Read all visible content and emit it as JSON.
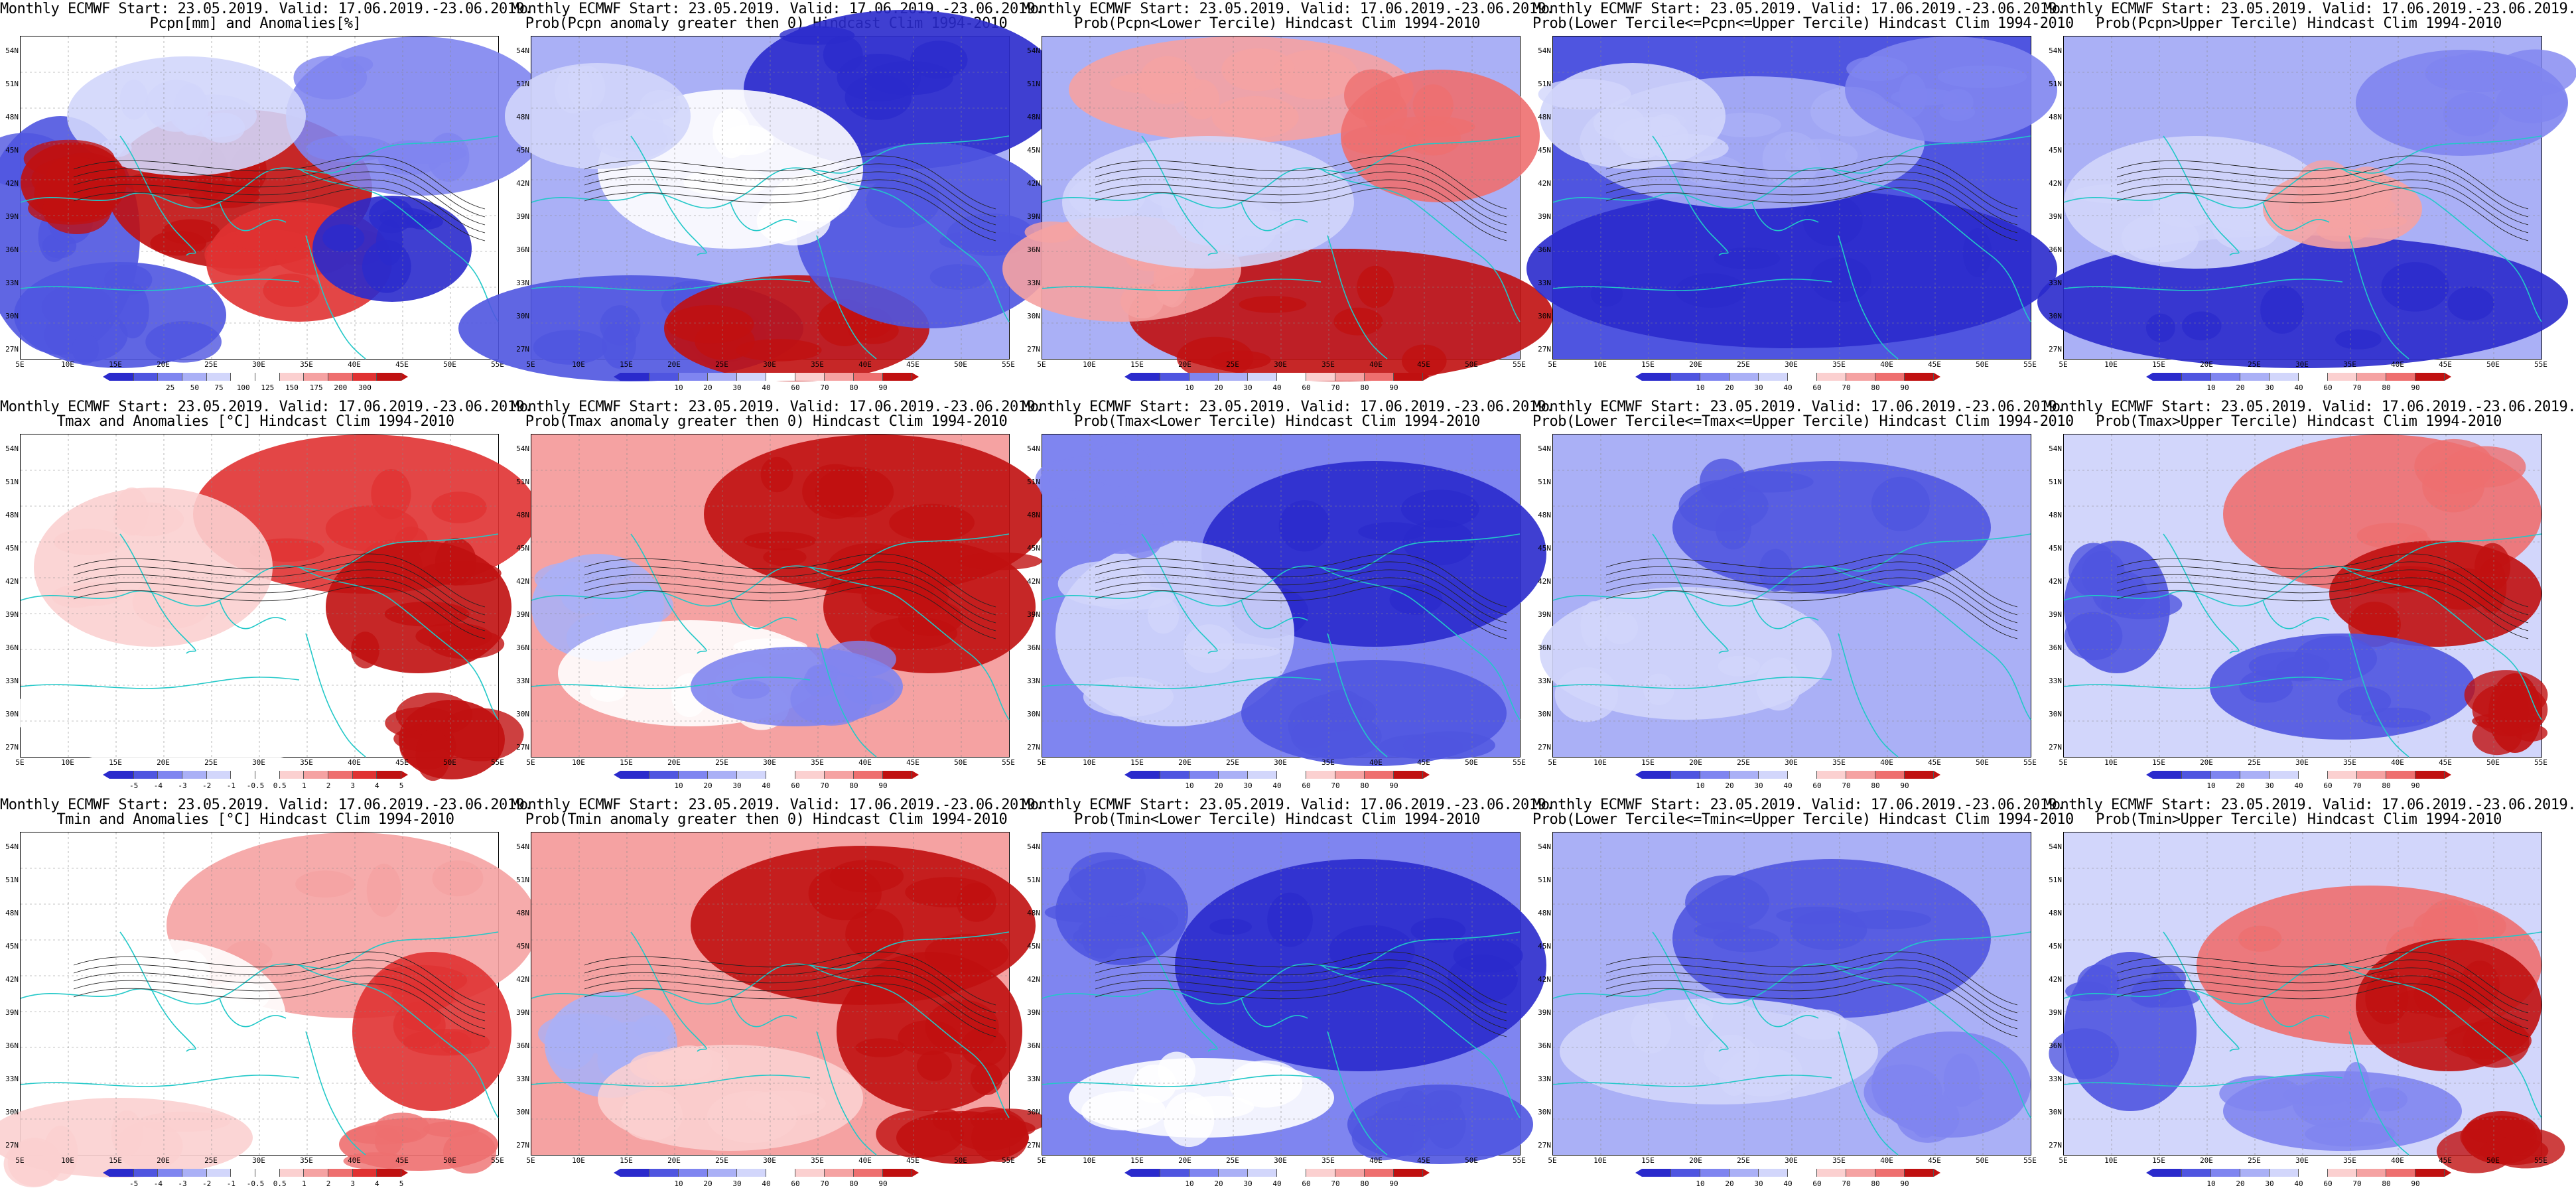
{
  "lat_labels": [
    "54N",
    "51N",
    "48N",
    "45N",
    "42N",
    "39N",
    "36N",
    "33N",
    "30N",
    "27N"
  ],
  "lon_labels": [
    "5E",
    "10E",
    "15E",
    "20E",
    "25E",
    "30E",
    "35E",
    "40E",
    "45E",
    "50E",
    "55E"
  ],
  "palettes": {
    "anom": [
      "#2a2acc",
      "#4f55e0",
      "#7f85f0",
      "#aab0f6",
      "#d2d6fb",
      "#ffffff",
      "#ffffff",
      "#fbd0d0",
      "#f5a2a2",
      "#ee6f6f",
      "#e03232",
      "#c01010"
    ],
    "prob": [
      "#2a2acc",
      "#4f55e0",
      "#7f85f0",
      "#aab0f6",
      "#d2d6fb",
      "#ffffff",
      "#fbd0d0",
      "#f5a2a2",
      "#ee6f6f",
      "#c01010"
    ]
  },
  "scales": {
    "pcpn": [
      "25",
      "50",
      "75",
      "100",
      "125",
      "150",
      "175",
      "200",
      "300"
    ],
    "temp": [
      "-5",
      "-4",
      "-3",
      "-2",
      "-1",
      "-0.5",
      "0.5",
      "1",
      "2",
      "3",
      "4",
      "5"
    ],
    "prob": [
      "10",
      "20",
      "30",
      "40",
      "60",
      "70",
      "80",
      "90"
    ]
  },
  "panels": [
    {
      "l1": "Monthly ECMWF Start: 23.05.2019. Valid: 17.06.2019.-23.06.2019.",
      "l2": "Pcpn[mm] and Anomalies[%]",
      "palette": "anom",
      "scale": "pcpn",
      "style": "pcpn-anom"
    },
    {
      "l1": "Monthly ECMWF Start: 23.05.2019. Valid: 17.06.2019.-23.06.2019.",
      "l2": "Prob(Pcpn anomaly greater then 0) Hindcast Clim 1994-2010",
      "palette": "prob",
      "scale": "prob",
      "style": "pcpn-pos"
    },
    {
      "l1": "Monthly ECMWF Start: 23.05.2019. Valid: 17.06.2019.-23.06.2019.",
      "l2": "Prob(Pcpn<Lower Tercile) Hindcast Clim 1994-2010",
      "palette": "prob",
      "scale": "prob",
      "style": "pcpn-low"
    },
    {
      "l1": "Monthly ECMWF Start: 23.05.2019. Valid: 17.06.2019.-23.06.2019.",
      "l2": "Prob(Lower Tercile<=Pcpn<=Upper Tercile) Hindcast Clim 1994-2010",
      "palette": "prob",
      "scale": "prob",
      "style": "pcpn-mid"
    },
    {
      "l1": "Monthly ECMWF Start: 23.05.2019. Valid: 17.06.2019.-23.06.2019.",
      "l2": "Prob(Pcpn>Upper Tercile) Hindcast Clim 1994-2010",
      "palette": "prob",
      "scale": "prob",
      "style": "pcpn-up"
    },
    {
      "l1": "Monthly ECMWF Start: 23.05.2019. Valid: 17.06.2019.-23.06.2019.",
      "l2": "Tmax and Anomalies [°C] Hindcast Clim 1994-2010",
      "palette": "anom",
      "scale": "temp",
      "style": "t-anom"
    },
    {
      "l1": "Monthly ECMWF Start: 23.05.2019. Valid: 17.06.2019.-23.06.2019.",
      "l2": "Prob(Tmax anomaly greater then 0) Hindcast Clim 1994-2010",
      "palette": "prob",
      "scale": "prob",
      "style": "t-pos"
    },
    {
      "l1": "Monthly ECMWF Start: 23.05.2019. Valid: 17.06.2019.-23.06.2019.",
      "l2": "Prob(Tmax<Lower Tercile) Hindcast Clim 1994-2010",
      "palette": "prob",
      "scale": "prob",
      "style": "t-low"
    },
    {
      "l1": "Monthly ECMWF Start: 23.05.2019. Valid: 17.06.2019.-23.06.2019.",
      "l2": "Prob(Lower Tercile<=Tmax<=Upper Tercile) Hindcast Clim 1994-2010",
      "palette": "prob",
      "scale": "prob",
      "style": "t-mid"
    },
    {
      "l1": "Monthly ECMWF Start: 23.05.2019. Valid: 17.06.2019.-23.06.2019.",
      "l2": "Prob(Tmax>Upper Tercile) Hindcast Clim 1994-2010",
      "palette": "prob",
      "scale": "prob",
      "style": "t-up"
    },
    {
      "l1": "Monthly ECMWF Start: 23.05.2019. Valid: 17.06.2019.-23.06.2019.",
      "l2": "Tmin and Anomalies [°C] Hindcast Clim 1994-2010",
      "palette": "anom",
      "scale": "temp",
      "style": "t-anom2"
    },
    {
      "l1": "Monthly ECMWF Start: 23.05.2019. Valid: 17.06.2019.-23.06.2019.",
      "l2": "Prob(Tmin anomaly greater then 0) Hindcast Clim 1994-2010",
      "palette": "prob",
      "scale": "prob",
      "style": "t-pos2"
    },
    {
      "l1": "Monthly ECMWF Start: 23.05.2019. Valid: 17.06.2019.-23.06.2019.",
      "l2": "Prob(Tmin<Lower Tercile) Hindcast Clim 1994-2010",
      "palette": "prob",
      "scale": "prob",
      "style": "t-low2"
    },
    {
      "l1": "Monthly ECMWF Start: 23.05.2019. Valid: 17.06.2019.-23.06.2019.",
      "l2": "Prob(Lower Tercile<=Tmin<=Upper Tercile) Hindcast Clim 1994-2010",
      "palette": "prob",
      "scale": "prob",
      "style": "t-mid2"
    },
    {
      "l1": "Monthly ECMWF Start: 23.05.2019. Valid: 17.06.2019.-23.06.2019.",
      "l2": "Prob(Tmin>Upper Tercile) Hindcast Clim 1994-2010",
      "palette": "prob",
      "scale": "prob",
      "style": "t-up2"
    }
  ]
}
